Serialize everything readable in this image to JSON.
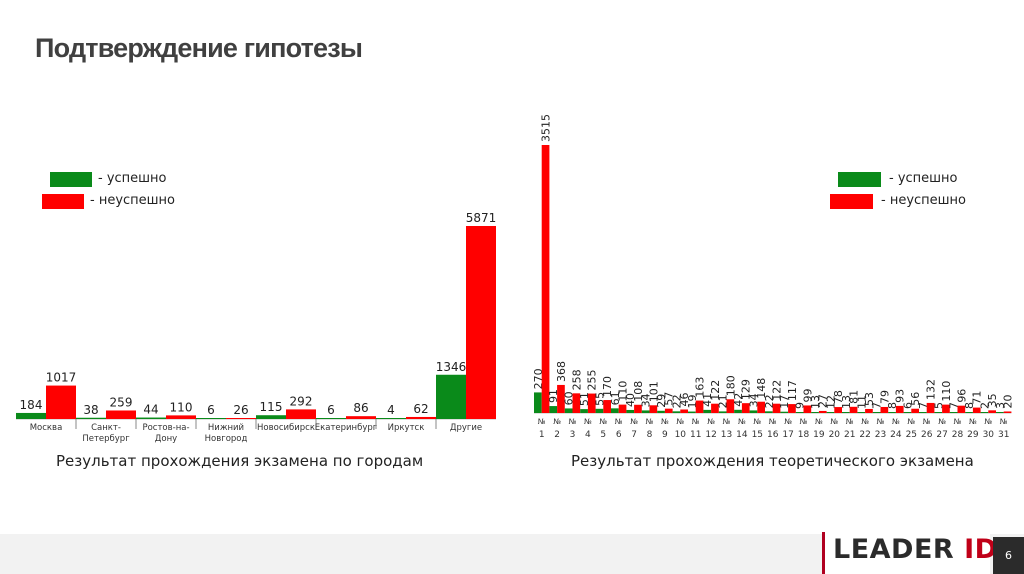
{
  "slide": {
    "title": "Подтверждение гипотезы",
    "page_number": "6"
  },
  "brand": {
    "text_main": "LEADER",
    "text_accent": "ID"
  },
  "colors": {
    "success": "#0a8a1a",
    "fail": "#ff0000",
    "title": "#404040",
    "brand_accent": "#c00018"
  },
  "chart_data": [
    {
      "type": "bar",
      "caption": "Результат прохождения экзамена по городам",
      "legend": [
        {
          "label": "- успешно",
          "color": "#0a8a1a"
        },
        {
          "label": "- неуспешно",
          "color": "#ff0000"
        }
      ],
      "categories": [
        [
          "Москва"
        ],
        [
          "Санкт-",
          "Петербург"
        ],
        [
          "Ростов-на-",
          "Дону"
        ],
        [
          "Нижний",
          "Новгород"
        ],
        [
          "Новосибирск"
        ],
        [
          "Екатеринбург"
        ],
        [
          "Иркутск"
        ],
        [
          "Другие"
        ]
      ],
      "series": [
        {
          "values": [
            184,
            38,
            44,
            6,
            115,
            6,
            4,
            1346
          ],
          "color": "#0a8a1a"
        },
        {
          "values": [
            1017,
            259,
            110,
            26,
            292,
            86,
            62,
            5871
          ],
          "color": "#ff0000"
        }
      ],
      "ylim": [
        0,
        6000
      ]
    },
    {
      "type": "bar",
      "caption": "Результат прохождения теоретического экзамена",
      "legend": [
        {
          "label": "- успешно",
          "color": "#0a8a1a"
        },
        {
          "label": "- неуспешно",
          "color": "#ff0000"
        }
      ],
      "category_prefix": "№",
      "categories": [
        "1",
        "2",
        "3",
        "4",
        "5",
        "6",
        "7",
        "8",
        "9",
        "10",
        "11",
        "12",
        "13",
        "14",
        "15",
        "16",
        "17",
        "18",
        "19",
        "20",
        "21",
        "22",
        "23",
        "24",
        "25",
        "26",
        "27",
        "28",
        "29",
        "30",
        "31"
      ],
      "series": [
        {
          "values": [
            270,
            91,
            60,
            51,
            55,
            61,
            40,
            34,
            29,
            22,
            19,
            41,
            21,
            42,
            34,
            22,
            17,
            9,
            13,
            12,
            13,
            11,
            7,
            8,
            6,
            7,
            5,
            7,
            8,
            2,
            3
          ],
          "color": "#0a8a1a"
        },
        {
          "values": [
            3515,
            368,
            258,
            255,
            170,
            110,
            108,
            101,
            57,
            46,
            163,
            122,
            180,
            129,
            148,
            122,
            117,
            99,
            27,
            78,
            81,
            53,
            79,
            93,
            56,
            132,
            110,
            96,
            71,
            35,
            20
          ],
          "color": "#ff0000"
        }
      ],
      "ylim": [
        0,
        3600
      ]
    }
  ]
}
